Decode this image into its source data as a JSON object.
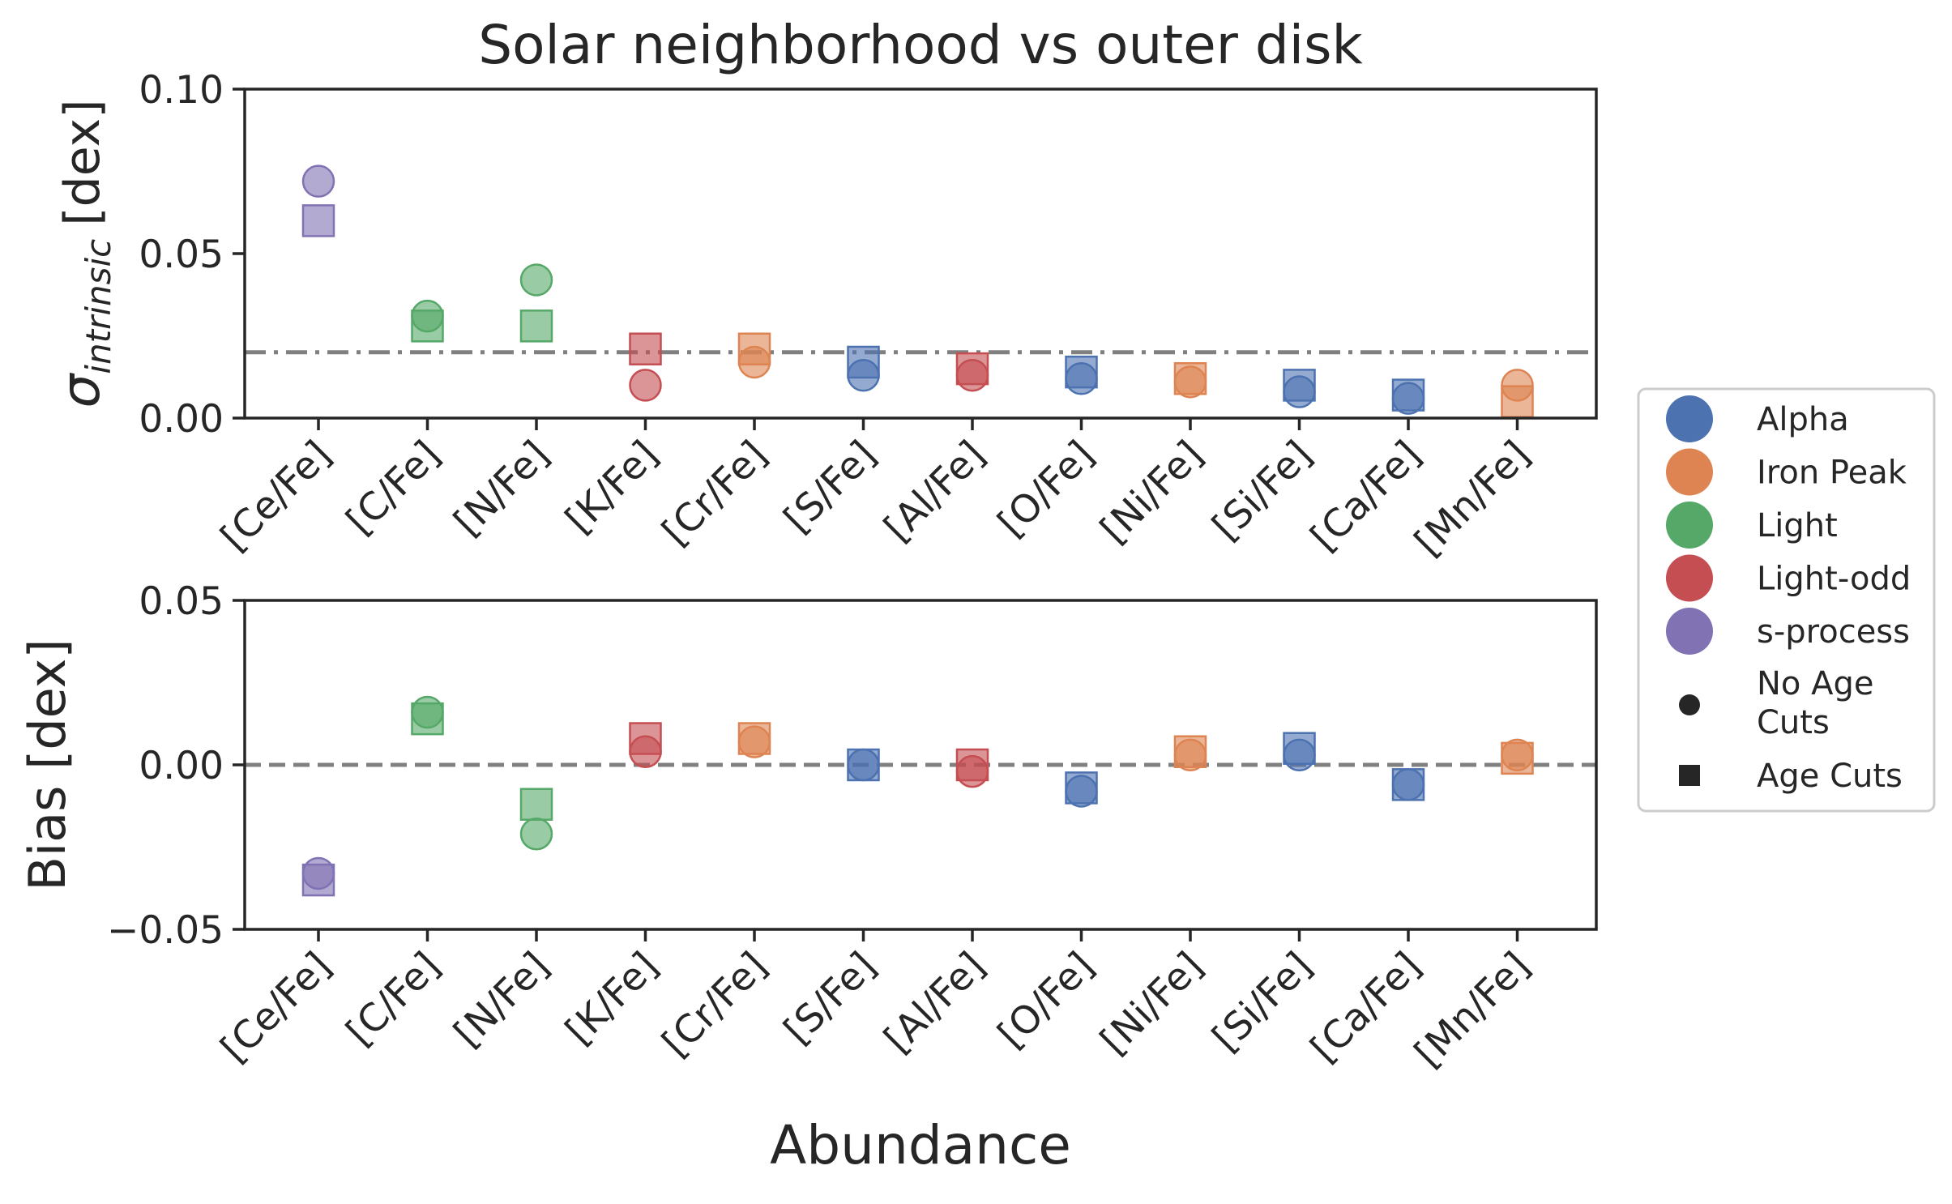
{
  "chart_data": [
    {
      "type": "scatter",
      "title": "Solar neighborhood vs outer disk",
      "ylabel": "σ",
      "ylabel_sub": "intrinsic",
      "ylabel_unit": "[dex]",
      "xlabel": "",
      "ylim": [
        0,
        0.1
      ],
      "yticks": [
        "0.00",
        "0.05",
        "0.10"
      ],
      "ytick_values": [
        0,
        0.05,
        0.1
      ],
      "categories": [
        "[Ce/Fe]",
        "[C/Fe]",
        "[N/Fe]",
        "[K/Fe]",
        "[Cr/Fe]",
        "[S/Fe]",
        "[Al/Fe]",
        "[O/Fe]",
        "[Ni/Fe]",
        "[Si/Fe]",
        "[Ca/Fe]",
        "[Mn/Fe]"
      ],
      "groups": [
        "s-process",
        "Light",
        "Light",
        "Light-odd",
        "Iron Peak",
        "Alpha",
        "Light-odd",
        "Alpha",
        "Iron Peak",
        "Alpha",
        "Alpha",
        "Iron Peak"
      ],
      "series": [
        {
          "name": "No Age Cuts",
          "marker": "circle",
          "values": [
            0.072,
            0.031,
            0.042,
            0.01,
            0.017,
            0.013,
            0.013,
            0.012,
            0.011,
            0.008,
            0.006,
            0.01
          ]
        },
        {
          "name": "Age Cuts",
          "marker": "square",
          "values": [
            0.06,
            0.028,
            0.028,
            0.021,
            0.021,
            0.017,
            0.015,
            0.014,
            0.012,
            0.01,
            0.007,
            0.005
          ]
        }
      ],
      "reference_line": {
        "value": 0.02,
        "style": "dashdot"
      },
      "grid": false
    },
    {
      "type": "scatter",
      "title": "",
      "ylabel": "Bias [dex]",
      "xlabel": "Abundance",
      "ylim": [
        -0.05,
        0.05
      ],
      "yticks": [
        "−0.05",
        "0.00",
        "0.05"
      ],
      "ytick_values": [
        -0.05,
        0,
        0.05
      ],
      "categories": [
        "[Ce/Fe]",
        "[C/Fe]",
        "[N/Fe]",
        "[K/Fe]",
        "[Cr/Fe]",
        "[S/Fe]",
        "[Al/Fe]",
        "[O/Fe]",
        "[Ni/Fe]",
        "[Si/Fe]",
        "[Ca/Fe]",
        "[Mn/Fe]"
      ],
      "groups": [
        "s-process",
        "Light",
        "Light",
        "Light-odd",
        "Iron Peak",
        "Alpha",
        "Light-odd",
        "Alpha",
        "Iron Peak",
        "Alpha",
        "Alpha",
        "Iron Peak"
      ],
      "series": [
        {
          "name": "No Age Cuts",
          "marker": "circle",
          "values": [
            -0.033,
            0.016,
            -0.021,
            0.004,
            0.007,
            0.0,
            -0.002,
            -0.008,
            0.003,
            0.003,
            -0.006,
            0.003
          ]
        },
        {
          "name": "Age Cuts",
          "marker": "square",
          "values": [
            -0.035,
            0.014,
            -0.012,
            0.008,
            0.008,
            0.0,
            0.0,
            -0.007,
            0.004,
            0.005,
            -0.006,
            0.002
          ]
        }
      ],
      "reference_line": {
        "value": 0.0,
        "style": "dashed"
      },
      "grid": false
    }
  ],
  "legend": {
    "placement": "right",
    "color_entries": [
      {
        "label": "Alpha",
        "color": "#4C72B0"
      },
      {
        "label": "Iron Peak",
        "color": "#DD8452"
      },
      {
        "label": "Light",
        "color": "#55A868"
      },
      {
        "label": "Light-odd",
        "color": "#C44E52"
      },
      {
        "label": "s-process",
        "color": "#8172B3"
      }
    ],
    "marker_entries": [
      {
        "label_lines": [
          "No Age",
          "Cuts"
        ],
        "marker": "circle"
      },
      {
        "label_lines": [
          "Age Cuts"
        ],
        "marker": "square"
      }
    ]
  },
  "colors": {
    "Alpha": "#4C72B0",
    "Iron Peak": "#DD8452",
    "Light": "#55A868",
    "Light-odd": "#C44E52",
    "s-process": "#8172B3",
    "axes": "#262626",
    "reference_line": "#808080"
  }
}
